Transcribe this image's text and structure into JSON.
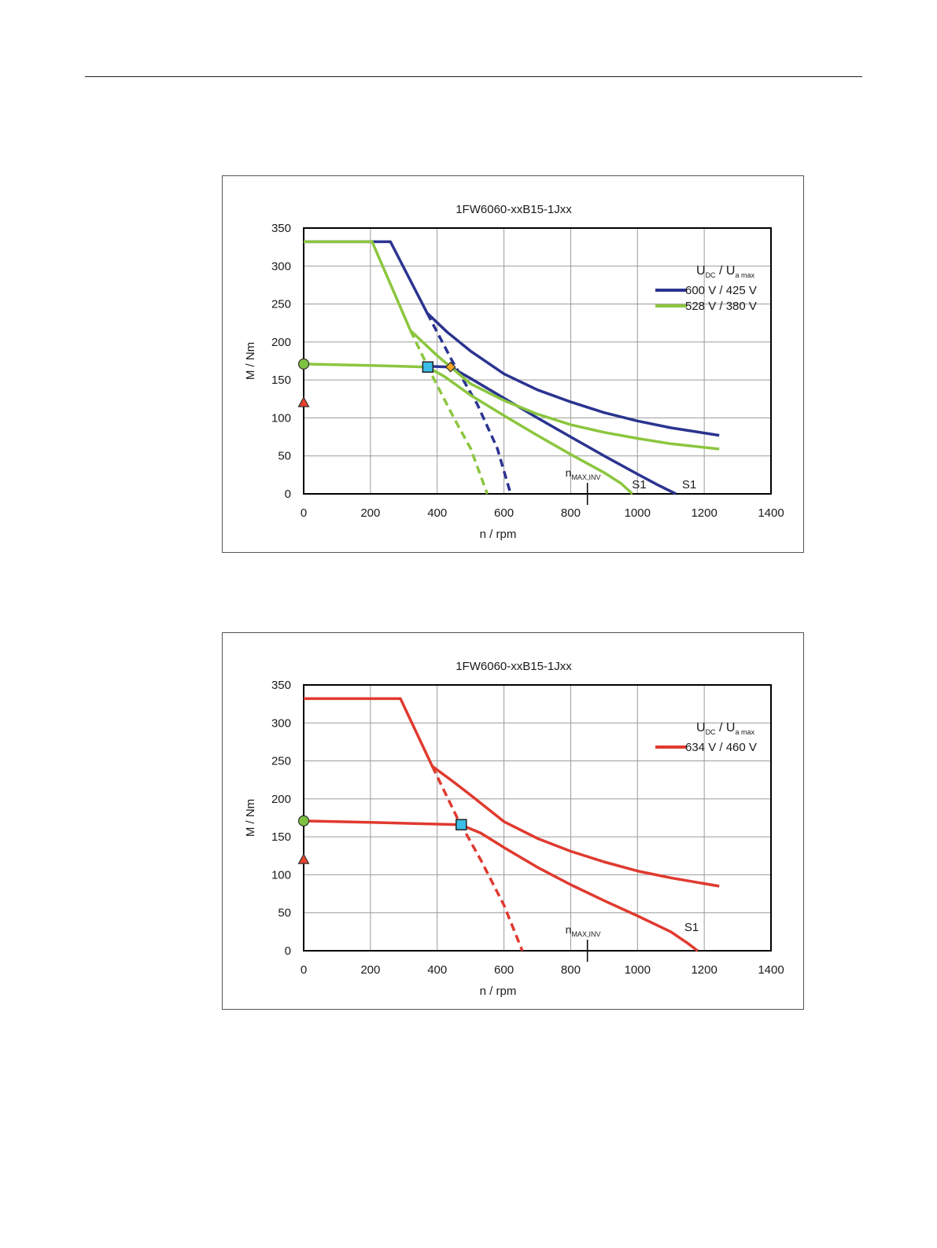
{
  "chart_data": [
    {
      "type": "line",
      "title": "1FW6060-xxB15-1Jxx",
      "xlabel": "n / rpm",
      "ylabel": "M / Nm",
      "xlim": [
        0,
        1400
      ],
      "ylim": [
        0,
        350
      ],
      "x_ticks": [
        0,
        200,
        400,
        600,
        800,
        1000,
        1200,
        1400
      ],
      "y_ticks": [
        0,
        50,
        100,
        150,
        200,
        250,
        300,
        350
      ],
      "grid": true,
      "legend_header": {
        "main1": "U",
        "sub1": "DC",
        "sep": "/",
        "main2": "U",
        "sub2": "a max"
      },
      "legend_position": "top-right",
      "nmax_label": {
        "main": "n",
        "sub": "MAX,INV"
      },
      "nmax_x": 850,
      "series": [
        {
          "name": "600 V / 425 V",
          "color": "#2b3490",
          "curves": [
            {
              "style": "solid",
              "points": [
                [
                  0,
                  332
                ],
                [
                  260,
                  332
                ],
                [
                  370,
                  238
                ],
                [
                  430,
                  213
                ],
                [
                  500,
                  188
                ],
                [
                  600,
                  158
                ],
                [
                  700,
                  137
                ],
                [
                  800,
                  121
                ],
                [
                  900,
                  107
                ],
                [
                  1000,
                  96
                ],
                [
                  1100,
                  87
                ],
                [
                  1245,
                  77
                ]
              ]
            },
            {
              "style": "solid",
              "points": [
                [
                  370,
                  168
                ],
                [
                  440,
                  167
                ],
                [
                  500,
                  152
                ],
                [
                  600,
                  126
                ],
                [
                  700,
                  100
                ],
                [
                  800,
                  75
                ],
                [
                  900,
                  50
                ],
                [
                  1000,
                  26
                ],
                [
                  1060,
                  12
                ],
                [
                  1115,
                  0
                ]
              ]
            },
            {
              "style": "dashed",
              "points": [
                [
                  370,
                  238
                ],
                [
                  445,
                  175
                ],
                [
                  520,
                  118
                ],
                [
                  580,
                  60
                ],
                [
                  620,
                  0
                ]
              ]
            }
          ]
        },
        {
          "name": "528 V / 380 V",
          "color": "#8cc63f",
          "curves": [
            {
              "style": "solid",
              "points": [
                [
                  0,
                  332
                ],
                [
                  205,
                  332
                ],
                [
                  320,
                  215
                ],
                [
                  400,
                  182
                ],
                [
                  500,
                  145
                ],
                [
                  600,
                  123
                ],
                [
                  700,
                  105
                ],
                [
                  800,
                  91
                ],
                [
                  900,
                  81
                ],
                [
                  1000,
                  73
                ],
                [
                  1100,
                  66
                ],
                [
                  1245,
                  59
                ]
              ]
            },
            {
              "style": "solid",
              "points": [
                [
                  0,
                  171
                ],
                [
                  200,
                  169
                ],
                [
                  370,
                  167
                ],
                [
                  420,
                  155
                ],
                [
                  500,
                  130
                ],
                [
                  600,
                  103
                ],
                [
                  700,
                  77
                ],
                [
                  800,
                  52
                ],
                [
                  900,
                  28
                ],
                [
                  950,
                  14
                ],
                [
                  985,
                  0
                ]
              ]
            },
            {
              "style": "dashed",
              "points": [
                [
                  320,
                  215
                ],
                [
                  380,
                  160
                ],
                [
                  450,
                  100
                ],
                [
                  500,
                  60
                ],
                [
                  550,
                  0
                ]
              ]
            }
          ]
        }
      ],
      "s1_labels": [
        {
          "text": "S1",
          "x": 1005,
          "y": 7
        },
        {
          "text": "S1",
          "x": 1155,
          "y": 7
        }
      ],
      "markers": [
        {
          "shape": "circle",
          "x": 0,
          "y": 171,
          "color": "#7dc142"
        },
        {
          "shape": "triangle",
          "x": 0,
          "y": 120,
          "color": "#e8412c"
        },
        {
          "shape": "square",
          "x": 372,
          "y": 167,
          "color": "#3bbde8"
        },
        {
          "shape": "diamond",
          "x": 440,
          "y": 167,
          "color": "#f5a623"
        }
      ]
    },
    {
      "type": "line",
      "title": "1FW6060-xxB15-1Jxx",
      "xlabel": "n / rpm",
      "ylabel": "M / Nm",
      "xlim": [
        0,
        1400
      ],
      "ylim": [
        0,
        350
      ],
      "x_ticks": [
        0,
        200,
        400,
        600,
        800,
        1000,
        1200,
        1400
      ],
      "y_ticks": [
        0,
        50,
        100,
        150,
        200,
        250,
        300,
        350
      ],
      "grid": true,
      "legend_header": {
        "main1": "U",
        "sub1": "DC",
        "sep": "/",
        "main2": "U",
        "sub2": "a max"
      },
      "legend_position": "top-right",
      "nmax_label": {
        "main": "n",
        "sub": "MAX,INV"
      },
      "nmax_x": 850,
      "series": [
        {
          "name": "634 V / 460 V",
          "color": "#e03a2f",
          "curves": [
            {
              "style": "solid",
              "points": [
                [
                  0,
                  332
                ],
                [
                  290,
                  332
                ],
                [
                  385,
                  243
                ],
                [
                  450,
                  222
                ],
                [
                  500,
                  205
                ],
                [
                  600,
                  170
                ],
                [
                  700,
                  148
                ],
                [
                  800,
                  131
                ],
                [
                  900,
                  117
                ],
                [
                  1000,
                  105
                ],
                [
                  1100,
                  96
                ],
                [
                  1245,
                  85
                ]
              ]
            },
            {
              "style": "solid",
              "points": [
                [
                  0,
                  171
                ],
                [
                  200,
                  169
                ],
                [
                  470,
                  166
                ],
                [
                  530,
                  155
                ],
                [
                  600,
                  136
                ],
                [
                  700,
                  110
                ],
                [
                  800,
                  87
                ],
                [
                  900,
                  66
                ],
                [
                  1000,
                  46
                ],
                [
                  1100,
                  25
                ],
                [
                  1150,
                  10
                ],
                [
                  1180,
                  0
                ]
              ]
            },
            {
              "style": "dashed",
              "points": [
                [
                  385,
                  243
                ],
                [
                  460,
                  175
                ],
                [
                  530,
                  120
                ],
                [
                  600,
                  60
                ],
                [
                  655,
                  0
                ]
              ]
            }
          ]
        }
      ],
      "s1_labels": [
        {
          "text": "S1",
          "x": 1162,
          "y": 26
        }
      ],
      "markers": [
        {
          "shape": "circle",
          "x": 0,
          "y": 171,
          "color": "#7dc142"
        },
        {
          "shape": "triangle",
          "x": 0,
          "y": 120,
          "color": "#e8412c"
        },
        {
          "shape": "square",
          "x": 472,
          "y": 166,
          "color": "#3bbde8"
        }
      ]
    }
  ]
}
